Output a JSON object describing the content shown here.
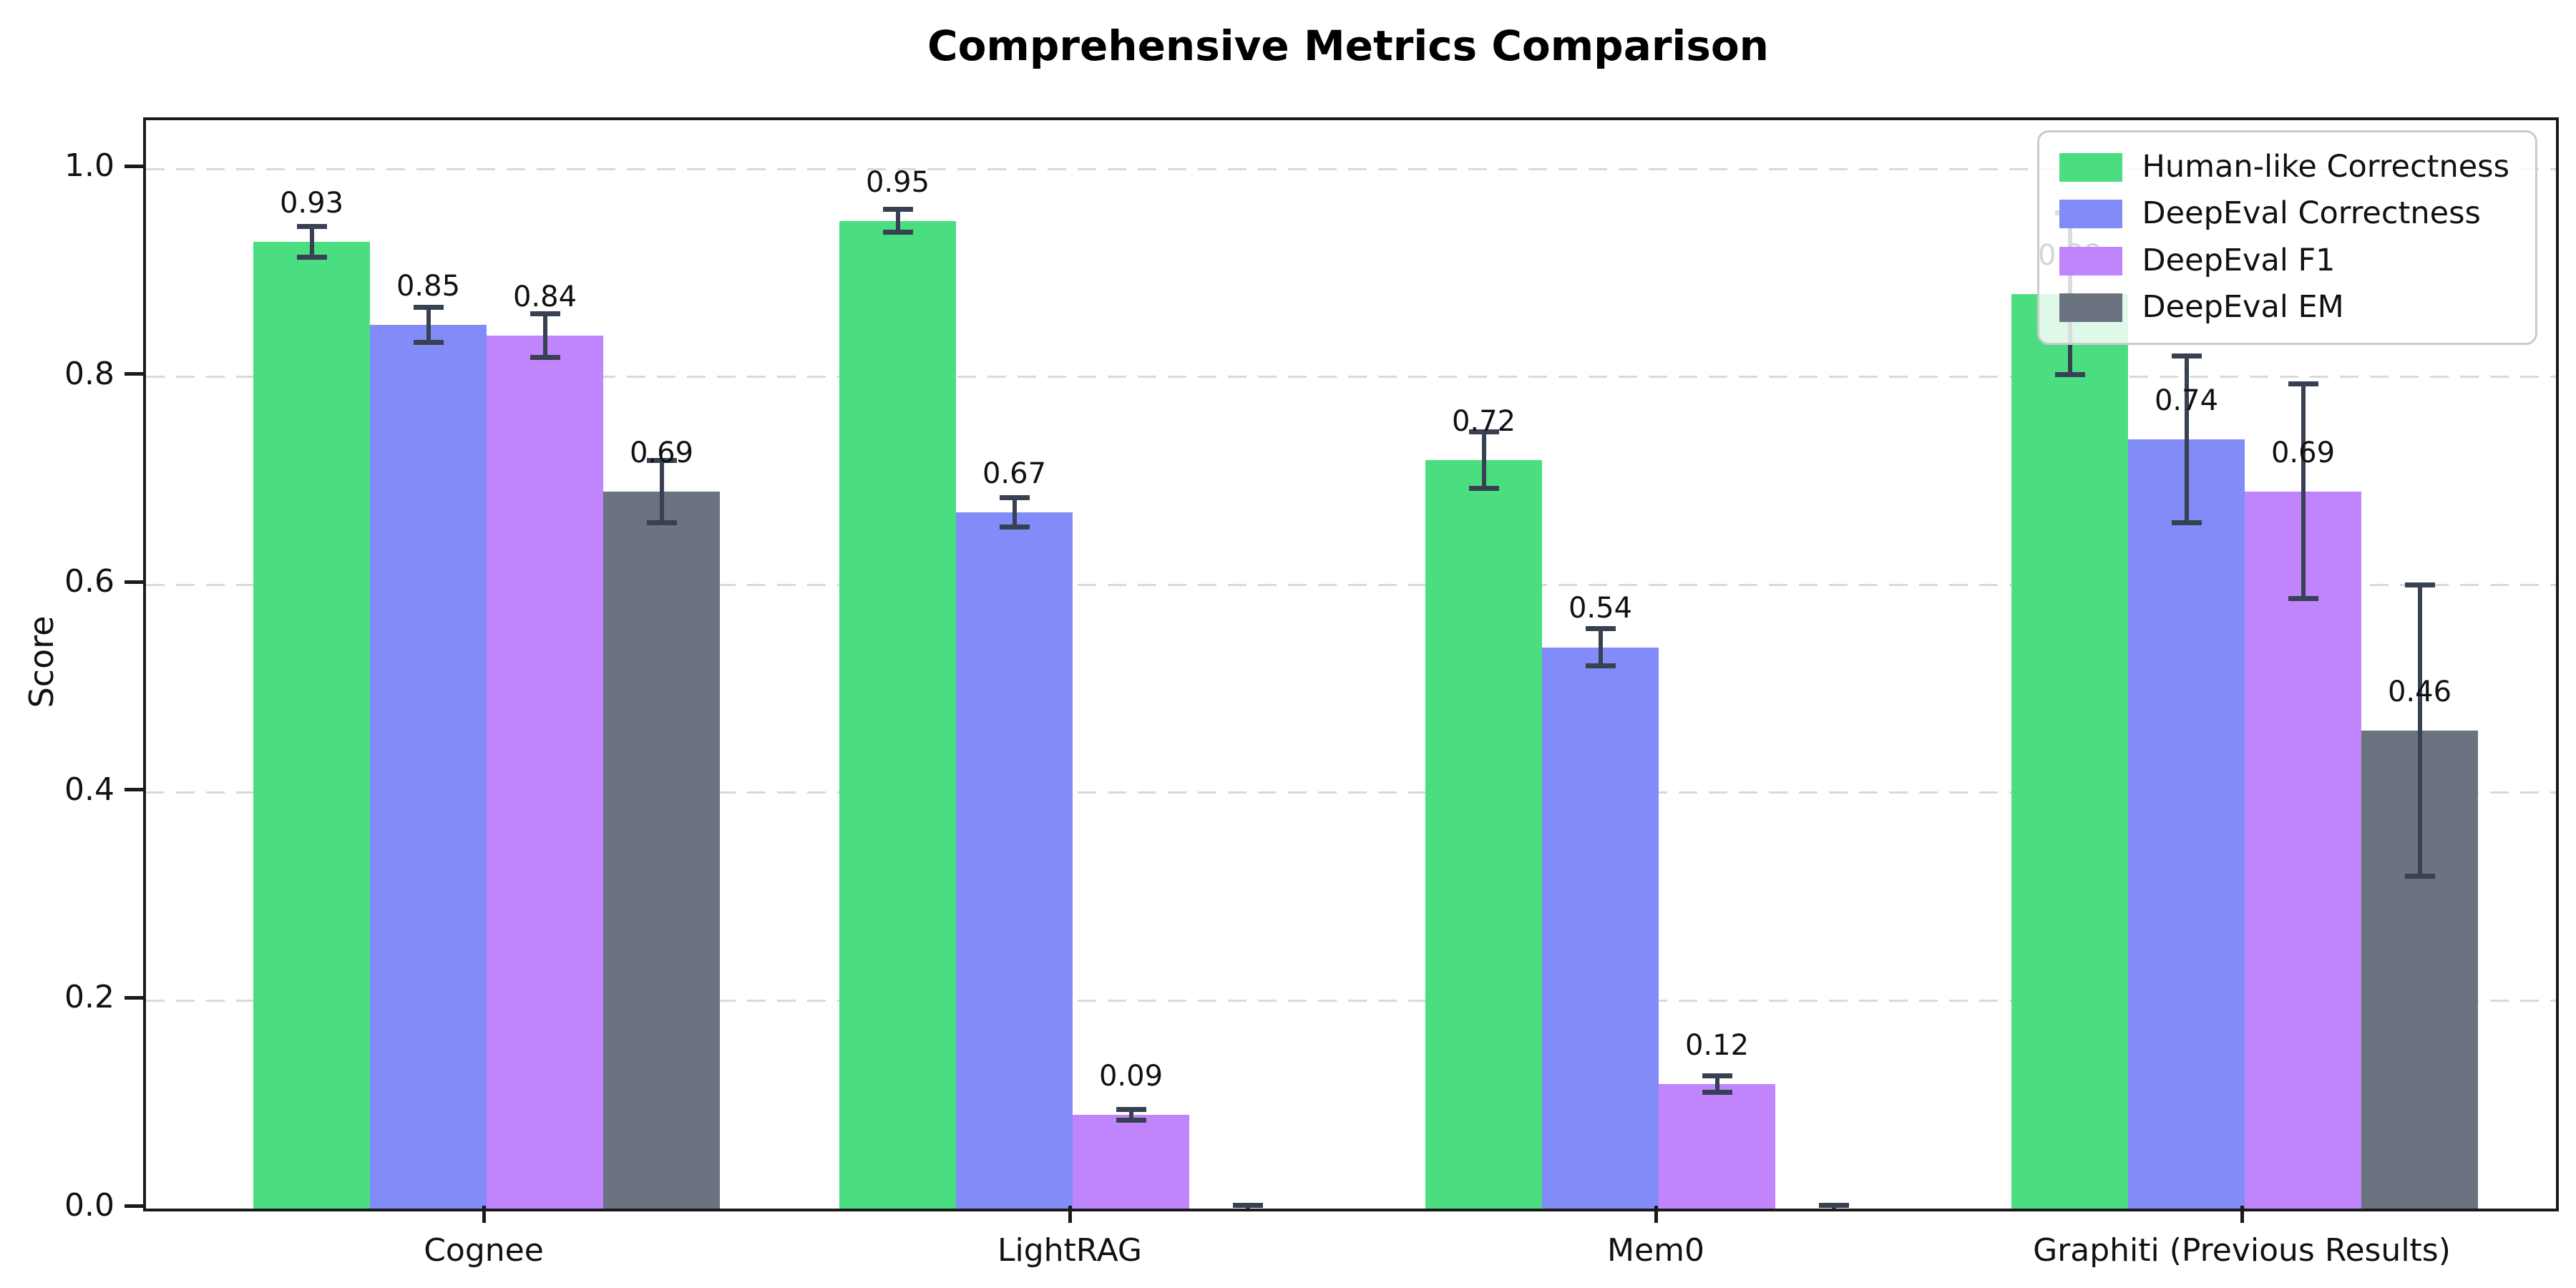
{
  "figure": {
    "title": "Comprehensive Metrics Comparison"
  },
  "chart_data": {
    "type": "bar",
    "title": "Comprehensive Metrics Comparison",
    "xlabel": "",
    "ylabel": "Score",
    "categories": [
      "Cognee",
      "LightRAG",
      "Mem0",
      "Graphiti (Previous Results)"
    ],
    "series": [
      {
        "name": "Human-like Correctness",
        "color": "#4ade80",
        "values": [
          0.93,
          0.95,
          0.72,
          0.88
        ],
        "errors": [
          0.015,
          0.011,
          0.027,
          0.078
        ],
        "labels": [
          "0.93",
          "0.95",
          "0.72",
          "0.88"
        ]
      },
      {
        "name": "DeepEval Correctness",
        "color": "#818cf8",
        "values": [
          0.85,
          0.67,
          0.54,
          0.74
        ],
        "errors": [
          0.017,
          0.014,
          0.018,
          0.08
        ],
        "labels": [
          "0.85",
          "0.67",
          "0.54",
          "0.74"
        ]
      },
      {
        "name": "DeepEval F1",
        "color": "#c084fc",
        "values": [
          0.84,
          0.09,
          0.12,
          0.69
        ],
        "errors": [
          0.021,
          0.005,
          0.008,
          0.103
        ],
        "labels": [
          "0.84",
          "0.09",
          "0.12",
          "0.69"
        ]
      },
      {
        "name": "DeepEval EM",
        "color": "#6b7280",
        "values": [
          0.69,
          0.0,
          0.0,
          0.46
        ],
        "errors": [
          0.03,
          0.003,
          0.003,
          0.14
        ],
        "labels": [
          "0.69",
          "",
          "",
          "0.46"
        ]
      }
    ],
    "yticks": [
      "0.0",
      "0.2",
      "0.4",
      "0.6",
      "0.8",
      "1.0"
    ],
    "ylim": [
      0,
      1.047
    ],
    "grid": "dashed-horizontal",
    "legend_position": "upper-right",
    "errorbar_color": "#374151",
    "background": "#ffffff"
  }
}
